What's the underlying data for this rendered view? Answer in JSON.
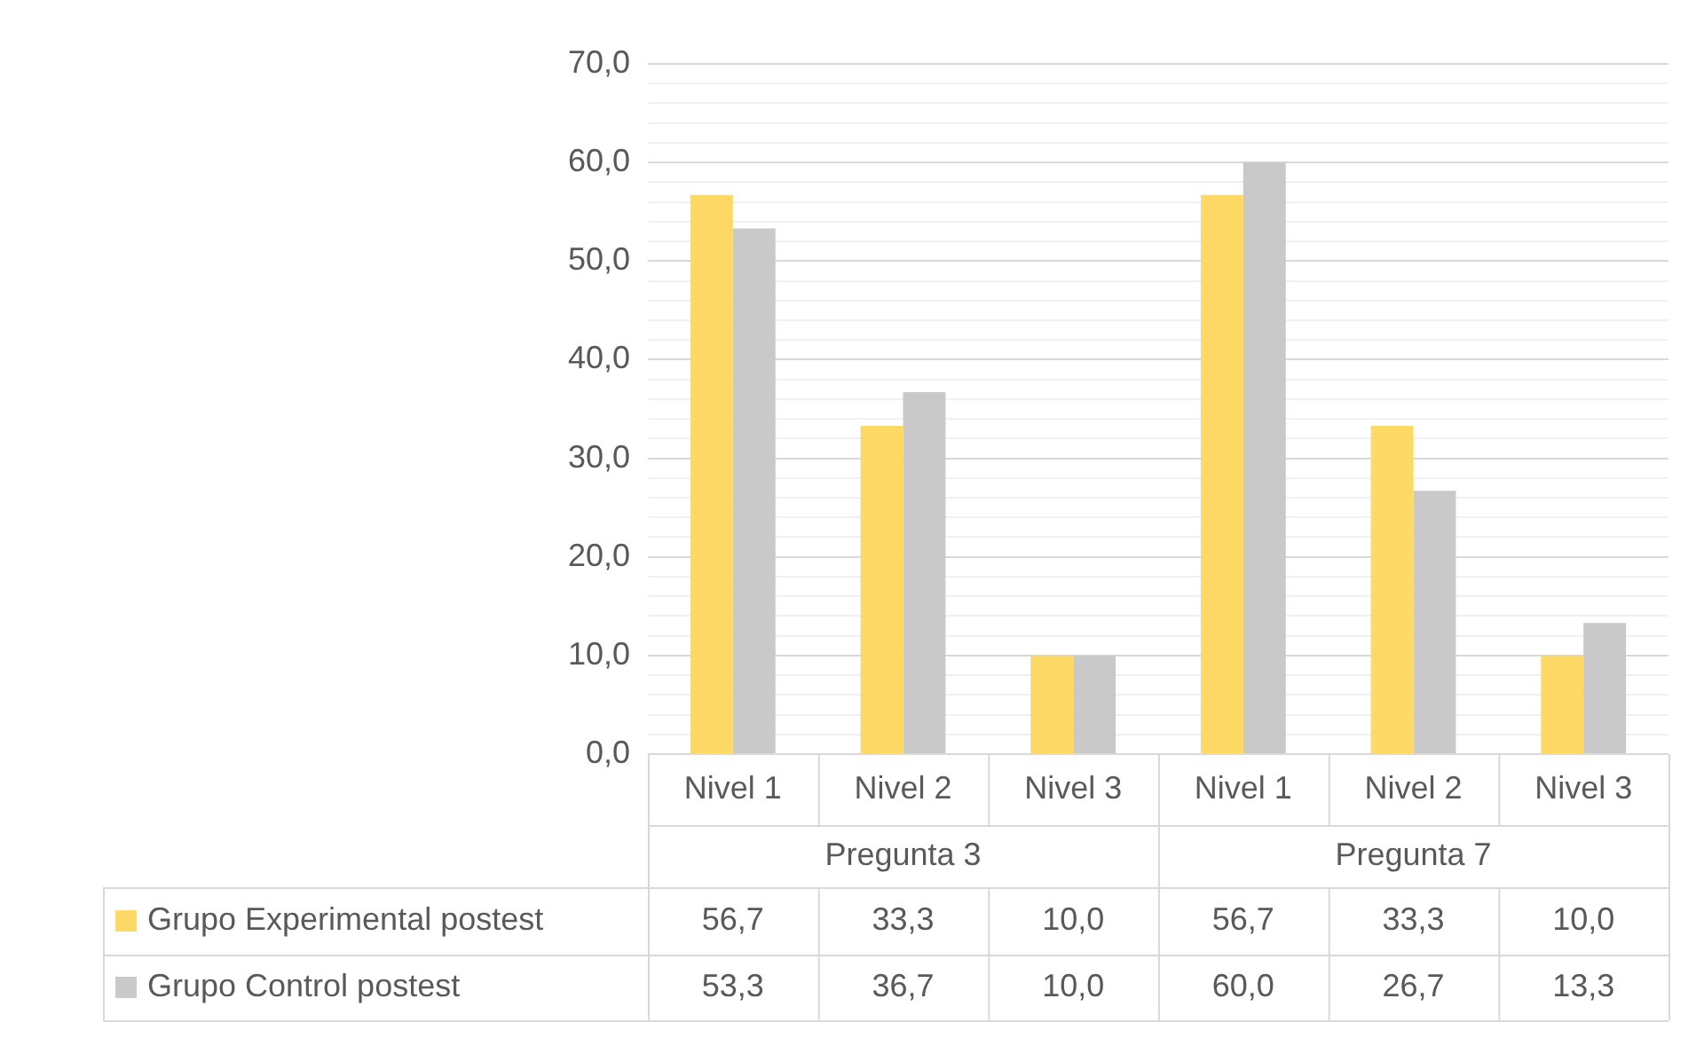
{
  "chart_data": {
    "type": "bar",
    "categories": [
      "Nivel 1",
      "Nivel 2",
      "Nivel 3",
      "Nivel 1",
      "Nivel 2",
      "Nivel 3"
    ],
    "annotations": [
      "Pregunta 3",
      "Pregunta 7"
    ],
    "series": [
      {
        "name": "Grupo Experimental postest",
        "color": "#ffd966",
        "values": [
          56.7,
          33.3,
          10.0,
          56.7,
          33.3,
          10.0
        ],
        "value_labels": [
          "56,7",
          "33,3",
          "10,0",
          "56,7",
          "33,3",
          "10,0"
        ]
      },
      {
        "name": "Grupo Control postest",
        "color": "#c9c9c9",
        "values": [
          53.3,
          36.7,
          10.0,
          60.0,
          26.7,
          13.3
        ],
        "value_labels": [
          "53,3",
          "36,7",
          "10,0",
          "60,0",
          "26,7",
          "13,3"
        ]
      }
    ],
    "ylim": [
      0,
      70
    ],
    "yticks": [
      {
        "value": 0,
        "label": "0,0"
      },
      {
        "value": 2,
        "label": null
      },
      {
        "value": 4,
        "label": null
      },
      {
        "value": 6,
        "label": null
      },
      {
        "value": 8,
        "label": null
      },
      {
        "value": 10,
        "label": "10,0"
      },
      {
        "value": 12,
        "label": null
      },
      {
        "value": 14,
        "label": null
      },
      {
        "value": 16,
        "label": null
      },
      {
        "value": 18,
        "label": null
      },
      {
        "value": 20,
        "label": "20,0"
      },
      {
        "value": 22,
        "label": null
      },
      {
        "value": 24,
        "label": null
      },
      {
        "value": 26,
        "label": null
      },
      {
        "value": 28,
        "label": null
      },
      {
        "value": 30,
        "label": "30,0"
      },
      {
        "value": 32,
        "label": null
      },
      {
        "value": 34,
        "label": null
      },
      {
        "value": 36,
        "label": null
      },
      {
        "value": 38,
        "label": null
      },
      {
        "value": 40,
        "label": "40,0"
      },
      {
        "value": 42,
        "label": null
      },
      {
        "value": 44,
        "label": null
      },
      {
        "value": 46,
        "label": null
      },
      {
        "value": 48,
        "label": null
      },
      {
        "value": 50,
        "label": "50,0"
      },
      {
        "value": 52,
        "label": null
      },
      {
        "value": 54,
        "label": null
      },
      {
        "value": 56,
        "label": null
      },
      {
        "value": 58,
        "label": null
      },
      {
        "value": 60,
        "label": "60,0"
      },
      {
        "value": 62,
        "label": null
      },
      {
        "value": 64,
        "label": null
      },
      {
        "value": 66,
        "label": null
      },
      {
        "value": 68,
        "label": null
      },
      {
        "value": 70,
        "label": "70,0"
      }
    ],
    "grid": true,
    "legend": "bottom"
  }
}
